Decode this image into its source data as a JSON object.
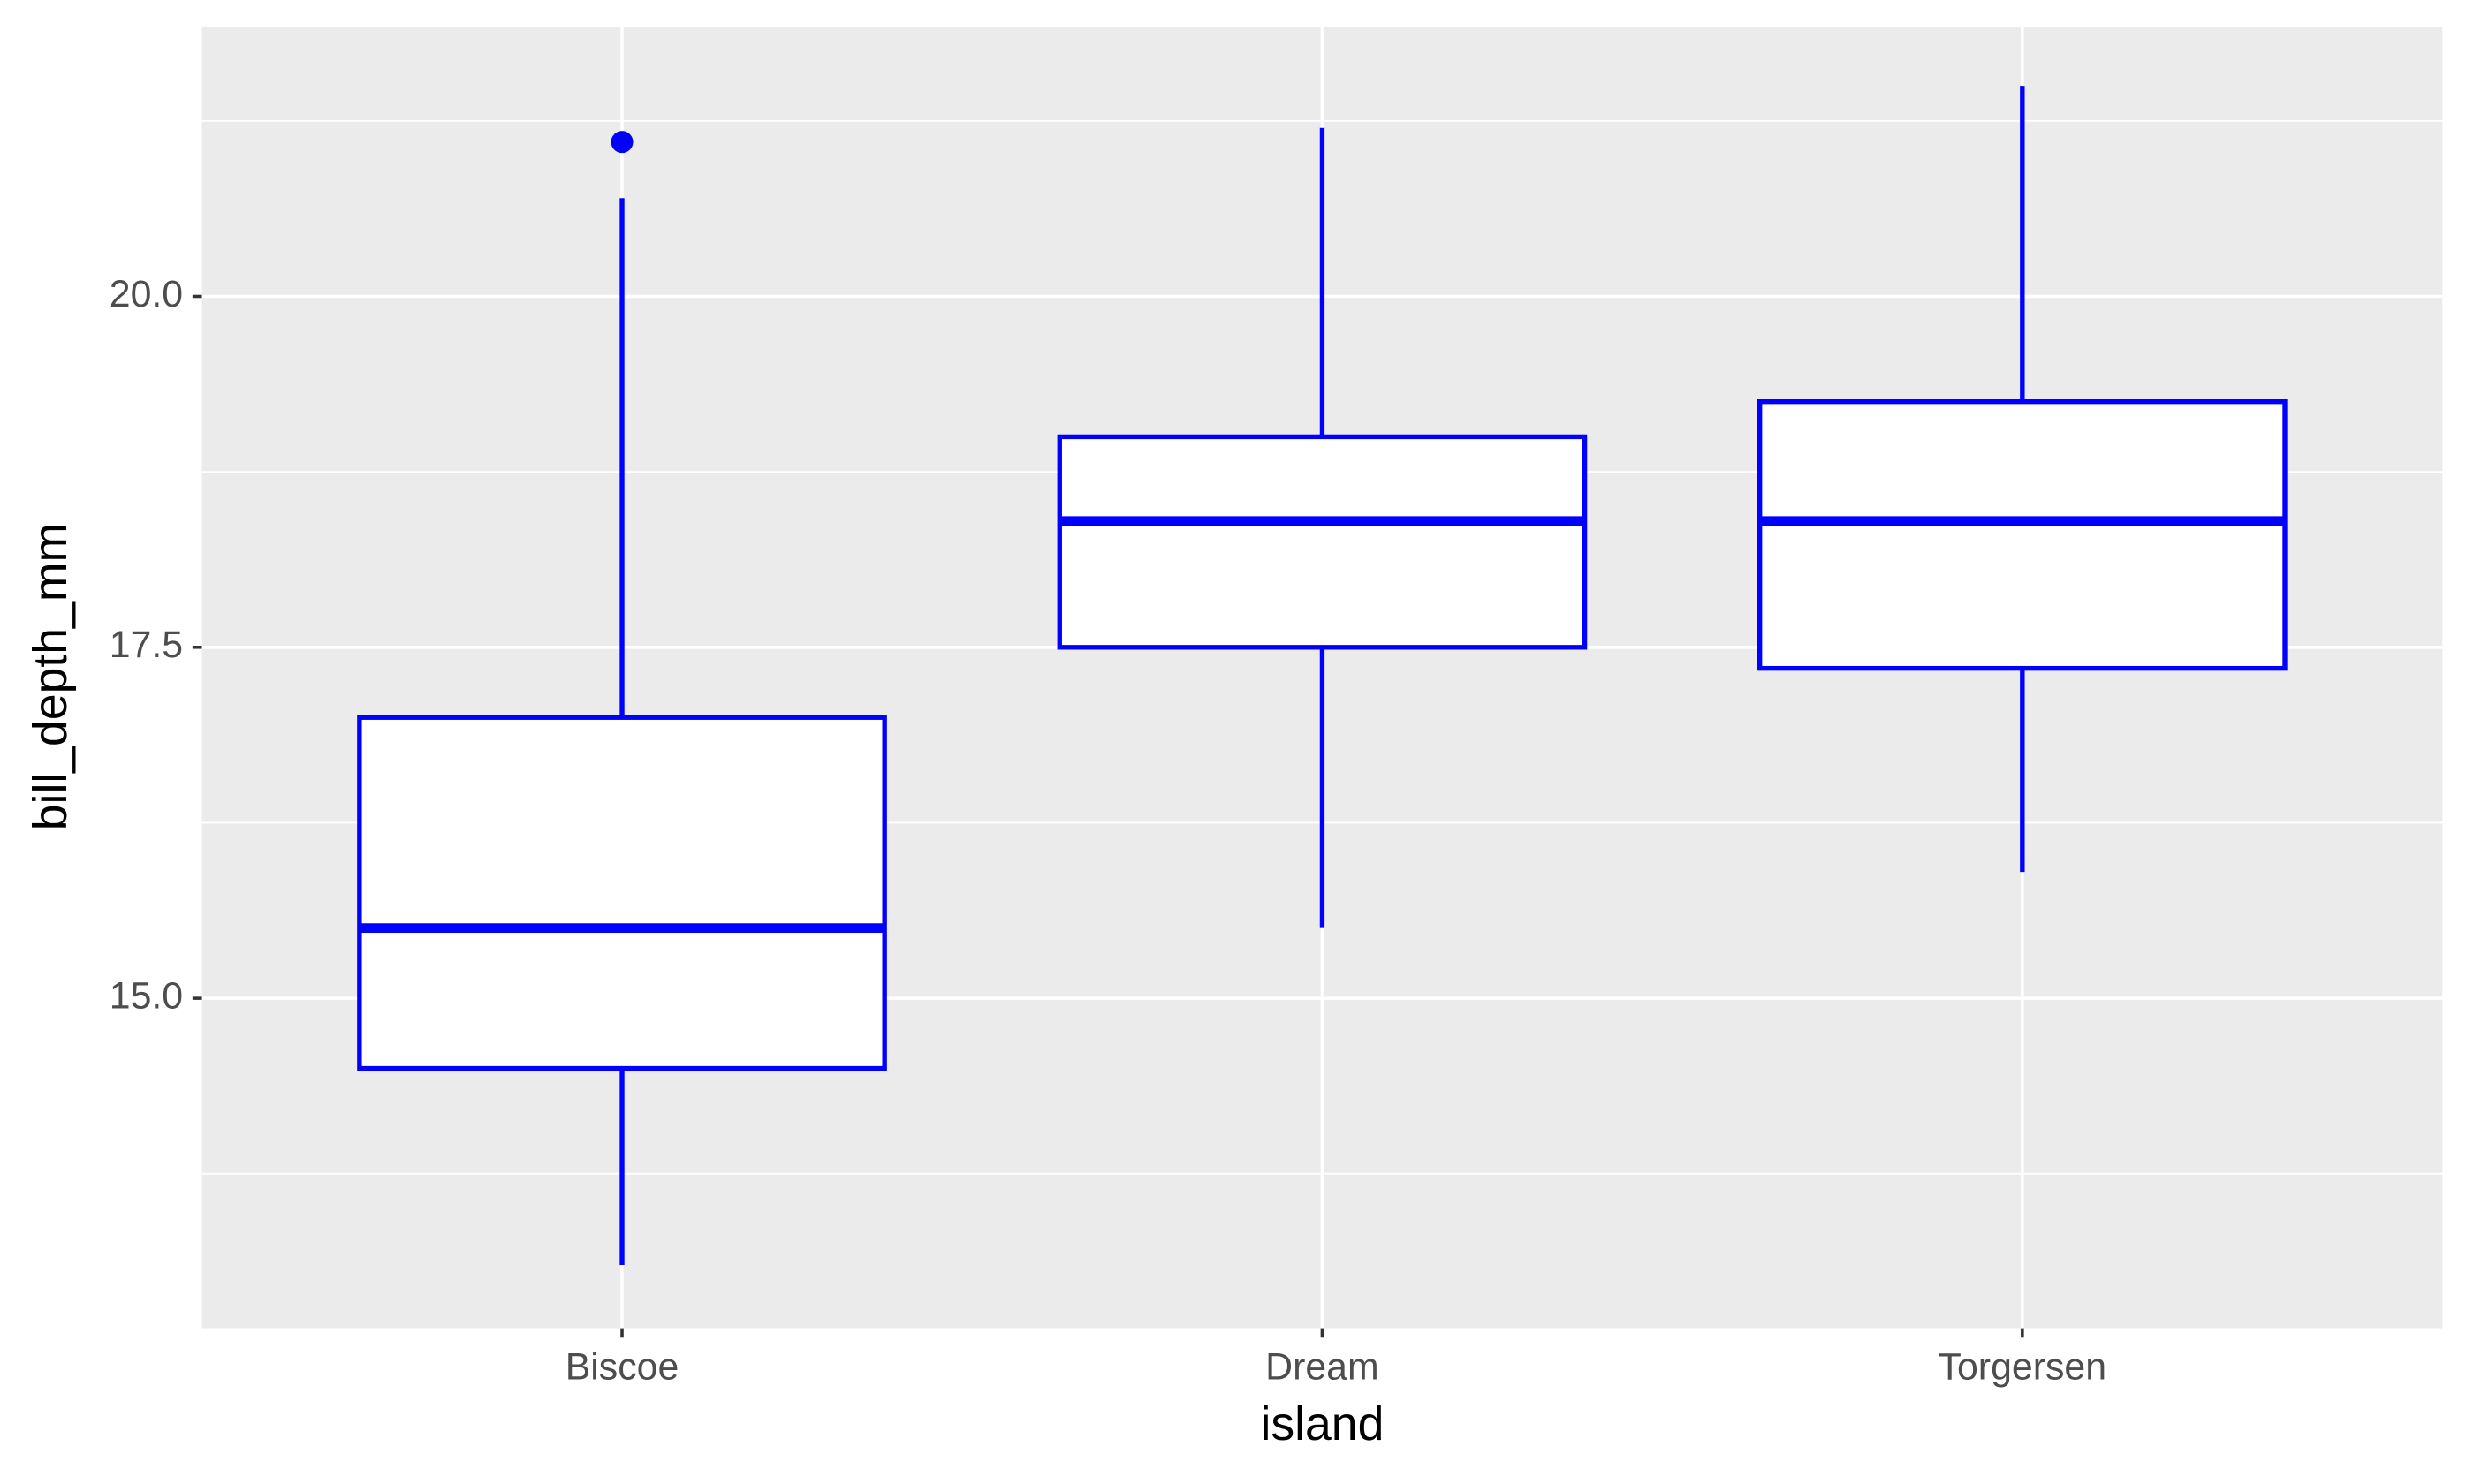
{
  "chart_data": {
    "type": "box",
    "x_label": "island",
    "y_label": "bill_depth_mm",
    "categories": [
      "Biscoe",
      "Dream",
      "Torgersen"
    ],
    "boxes": [
      {
        "whisker_low": 13.1,
        "q1": 14.5,
        "median": 15.5,
        "q3": 17.0,
        "whisker_high": 20.7,
        "outliers": [
          21.1
        ]
      },
      {
        "whisker_low": 15.5,
        "q1": 17.5,
        "median": 18.4,
        "q3": 19.0,
        "whisker_high": 21.2,
        "outliers": []
      },
      {
        "whisker_low": 15.9,
        "q1": 17.35,
        "median": 18.4,
        "q3": 19.25,
        "whisker_high": 21.5,
        "outliers": []
      }
    ],
    "color": "#0000ff",
    "fill": "#ffffff",
    "ylim": [
      12.65,
      21.92
    ],
    "yticks": [
      {
        "value": 15,
        "label": "15.0"
      },
      17.5,
      {
        "value": 20,
        "label": "20.0"
      }
    ],
    "grid": true,
    "minor_grid": true
  }
}
